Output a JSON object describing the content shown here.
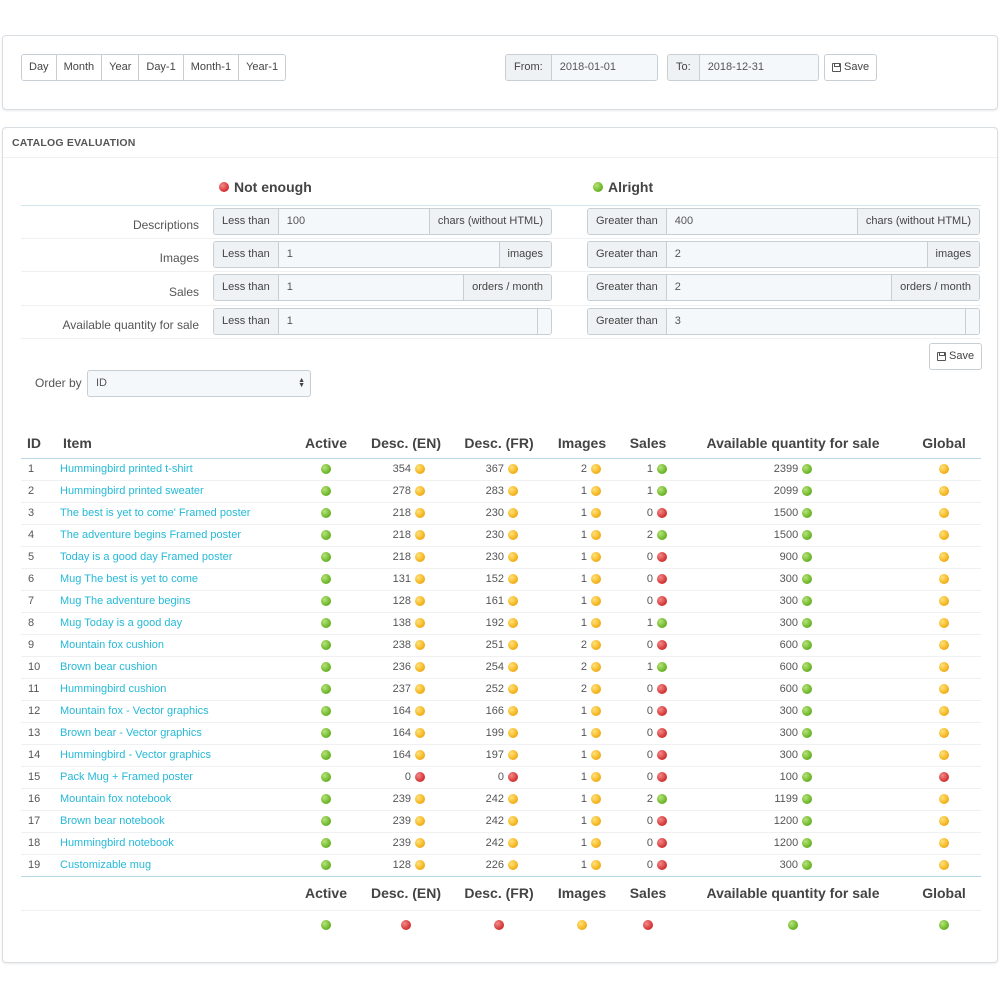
{
  "period_buttons": [
    "Day",
    "Month",
    "Year",
    "Day-1",
    "Month-1",
    "Year-1"
  ],
  "date_range": {
    "from_label": "From:",
    "from_value": "2018-01-01",
    "to_label": "To:",
    "to_value": "2018-12-31",
    "save_label": "Save"
  },
  "catalog": {
    "title": "CATALOG EVALUATION",
    "not_enough_label": "Not enough",
    "alright_label": "Alright",
    "criteria": [
      {
        "label": "Descriptions",
        "low_prefix": "Less than",
        "low_value": "100",
        "low_suffix": "chars (without HTML)",
        "high_prefix": "Greater than",
        "high_value": "400",
        "high_suffix": "chars (without HTML)"
      },
      {
        "label": "Images",
        "low_prefix": "Less than",
        "low_value": "1",
        "low_suffix": "images",
        "high_prefix": "Greater than",
        "high_value": "2",
        "high_suffix": "images"
      },
      {
        "label": "Sales",
        "low_prefix": "Less than",
        "low_value": "1",
        "low_suffix": "orders / month",
        "high_prefix": "Greater than",
        "high_value": "2",
        "high_suffix": "orders / month"
      },
      {
        "label": "Available quantity for sale",
        "low_prefix": "Less than",
        "low_value": "1",
        "low_suffix": "",
        "high_prefix": "Greater than",
        "high_value": "3",
        "high_suffix": ""
      }
    ],
    "save_label": "Save",
    "order_by_label": "Order by",
    "order_by_value": "ID"
  },
  "table": {
    "headers": {
      "id": "ID",
      "item": "Item",
      "active": "Active",
      "desc_en": "Desc. (EN)",
      "desc_fr": "Desc. (FR)",
      "images": "Images",
      "sales": "Sales",
      "quantity": "Available quantity for sale",
      "global": "Global"
    },
    "rows": [
      {
        "id": "1",
        "item": "Hummingbird printed t-shirt",
        "active": "green",
        "desc_en": "354",
        "desc_en_status": "orange",
        "desc_fr": "367",
        "desc_fr_status": "orange",
        "images": "2",
        "images_status": "orange",
        "sales": "1",
        "sales_status": "green",
        "qty": "2399",
        "qty_status": "green",
        "global": "orange"
      },
      {
        "id": "2",
        "item": "Hummingbird printed sweater",
        "active": "green",
        "desc_en": "278",
        "desc_en_status": "orange",
        "desc_fr": "283",
        "desc_fr_status": "orange",
        "images": "1",
        "images_status": "orange",
        "sales": "1",
        "sales_status": "green",
        "qty": "2099",
        "qty_status": "green",
        "global": "orange"
      },
      {
        "id": "3",
        "item": "The best is yet to come' Framed poster",
        "active": "green",
        "desc_en": "218",
        "desc_en_status": "orange",
        "desc_fr": "230",
        "desc_fr_status": "orange",
        "images": "1",
        "images_status": "orange",
        "sales": "0",
        "sales_status": "red",
        "qty": "1500",
        "qty_status": "green",
        "global": "orange"
      },
      {
        "id": "4",
        "item": "The adventure begins Framed poster",
        "active": "green",
        "desc_en": "218",
        "desc_en_status": "orange",
        "desc_fr": "230",
        "desc_fr_status": "orange",
        "images": "1",
        "images_status": "orange",
        "sales": "2",
        "sales_status": "green",
        "qty": "1500",
        "qty_status": "green",
        "global": "orange"
      },
      {
        "id": "5",
        "item": "Today is a good day Framed poster",
        "active": "green",
        "desc_en": "218",
        "desc_en_status": "orange",
        "desc_fr": "230",
        "desc_fr_status": "orange",
        "images": "1",
        "images_status": "orange",
        "sales": "0",
        "sales_status": "red",
        "qty": "900",
        "qty_status": "green",
        "global": "orange"
      },
      {
        "id": "6",
        "item": "Mug The best is yet to come",
        "active": "green",
        "desc_en": "131",
        "desc_en_status": "orange",
        "desc_fr": "152",
        "desc_fr_status": "orange",
        "images": "1",
        "images_status": "orange",
        "sales": "0",
        "sales_status": "red",
        "qty": "300",
        "qty_status": "green",
        "global": "orange"
      },
      {
        "id": "7",
        "item": "Mug The adventure begins",
        "active": "green",
        "desc_en": "128",
        "desc_en_status": "orange",
        "desc_fr": "161",
        "desc_fr_status": "orange",
        "images": "1",
        "images_status": "orange",
        "sales": "0",
        "sales_status": "red",
        "qty": "300",
        "qty_status": "green",
        "global": "orange"
      },
      {
        "id": "8",
        "item": "Mug Today is a good day",
        "active": "green",
        "desc_en": "138",
        "desc_en_status": "orange",
        "desc_fr": "192",
        "desc_fr_status": "orange",
        "images": "1",
        "images_status": "orange",
        "sales": "1",
        "sales_status": "green",
        "qty": "300",
        "qty_status": "green",
        "global": "orange"
      },
      {
        "id": "9",
        "item": "Mountain fox cushion",
        "active": "green",
        "desc_en": "238",
        "desc_en_status": "orange",
        "desc_fr": "251",
        "desc_fr_status": "orange",
        "images": "2",
        "images_status": "orange",
        "sales": "0",
        "sales_status": "red",
        "qty": "600",
        "qty_status": "green",
        "global": "orange"
      },
      {
        "id": "10",
        "item": "Brown bear cushion",
        "active": "green",
        "desc_en": "236",
        "desc_en_status": "orange",
        "desc_fr": "254",
        "desc_fr_status": "orange",
        "images": "2",
        "images_status": "orange",
        "sales": "1",
        "sales_status": "green",
        "qty": "600",
        "qty_status": "green",
        "global": "orange"
      },
      {
        "id": "11",
        "item": "Hummingbird cushion",
        "active": "green",
        "desc_en": "237",
        "desc_en_status": "orange",
        "desc_fr": "252",
        "desc_fr_status": "orange",
        "images": "2",
        "images_status": "orange",
        "sales": "0",
        "sales_status": "red",
        "qty": "600",
        "qty_status": "green",
        "global": "orange"
      },
      {
        "id": "12",
        "item": "Mountain fox - Vector graphics",
        "active": "green",
        "desc_en": "164",
        "desc_en_status": "orange",
        "desc_fr": "166",
        "desc_fr_status": "orange",
        "images": "1",
        "images_status": "orange",
        "sales": "0",
        "sales_status": "red",
        "qty": "300",
        "qty_status": "green",
        "global": "orange"
      },
      {
        "id": "13",
        "item": "Brown bear - Vector graphics",
        "active": "green",
        "desc_en": "164",
        "desc_en_status": "orange",
        "desc_fr": "199",
        "desc_fr_status": "orange",
        "images": "1",
        "images_status": "orange",
        "sales": "0",
        "sales_status": "red",
        "qty": "300",
        "qty_status": "green",
        "global": "orange"
      },
      {
        "id": "14",
        "item": "Hummingbird - Vector graphics",
        "active": "green",
        "desc_en": "164",
        "desc_en_status": "orange",
        "desc_fr": "197",
        "desc_fr_status": "orange",
        "images": "1",
        "images_status": "orange",
        "sales": "0",
        "sales_status": "red",
        "qty": "300",
        "qty_status": "green",
        "global": "orange"
      },
      {
        "id": "15",
        "item": "Pack Mug + Framed poster",
        "active": "green",
        "desc_en": "0",
        "desc_en_status": "red",
        "desc_fr": "0",
        "desc_fr_status": "red",
        "images": "1",
        "images_status": "orange",
        "sales": "0",
        "sales_status": "red",
        "qty": "100",
        "qty_status": "green",
        "global": "red"
      },
      {
        "id": "16",
        "item": "Mountain fox notebook",
        "active": "green",
        "desc_en": "239",
        "desc_en_status": "orange",
        "desc_fr": "242",
        "desc_fr_status": "orange",
        "images": "1",
        "images_status": "orange",
        "sales": "2",
        "sales_status": "green",
        "qty": "1199",
        "qty_status": "green",
        "global": "orange"
      },
      {
        "id": "17",
        "item": "Brown bear notebook",
        "active": "green",
        "desc_en": "239",
        "desc_en_status": "orange",
        "desc_fr": "242",
        "desc_fr_status": "orange",
        "images": "1",
        "images_status": "orange",
        "sales": "0",
        "sales_status": "red",
        "qty": "1200",
        "qty_status": "green",
        "global": "orange"
      },
      {
        "id": "18",
        "item": "Hummingbird notebook",
        "active": "green",
        "desc_en": "239",
        "desc_en_status": "orange",
        "desc_fr": "242",
        "desc_fr_status": "orange",
        "images": "1",
        "images_status": "orange",
        "sales": "0",
        "sales_status": "red",
        "qty": "1200",
        "qty_status": "green",
        "global": "orange"
      },
      {
        "id": "19",
        "item": "Customizable mug",
        "active": "green",
        "desc_en": "128",
        "desc_en_status": "orange",
        "desc_fr": "226",
        "desc_fr_status": "orange",
        "images": "1",
        "images_status": "orange",
        "sales": "0",
        "sales_status": "red",
        "qty": "300",
        "qty_status": "green",
        "global": "orange"
      }
    ],
    "summary": {
      "active": "green",
      "desc_en": "red",
      "desc_fr": "red",
      "images": "orange",
      "sales": "red",
      "quantity": "green",
      "global": "green"
    }
  },
  "colors": {
    "link": "#25b9d7",
    "green": "#6fb92b",
    "orange": "#f5b520",
    "red": "#d83a3a"
  }
}
